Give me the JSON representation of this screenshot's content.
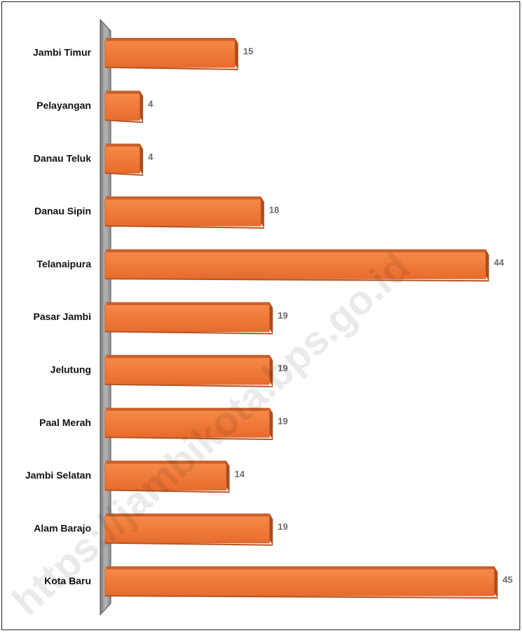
{
  "watermark": "https://jambikota.bps.go.id",
  "colors": {
    "bar_front": "#f07a3a",
    "bar_top": "#c9602a",
    "bar_side": "#a94d1f",
    "axis_wall": "#9a9a9a",
    "value_text": "#6b6b6b"
  },
  "chart_data": {
    "type": "bar",
    "orientation": "horizontal",
    "style": "3d",
    "categories": [
      "Jambi Timur",
      "Pelayangan",
      "Danau Teluk",
      "Danau Sipin",
      "Telanaipura",
      "Pasar Jambi",
      "Jelutung",
      "Paal Merah",
      "Jambi Selatan",
      "Alam Barajo",
      "Kota Baru"
    ],
    "values": [
      15,
      4,
      4,
      18,
      44,
      19,
      19,
      19,
      14,
      19,
      45
    ],
    "title": "",
    "xlabel": "",
    "ylabel": "",
    "xlim": [
      0,
      45
    ],
    "grid": false,
    "legend": "none"
  }
}
